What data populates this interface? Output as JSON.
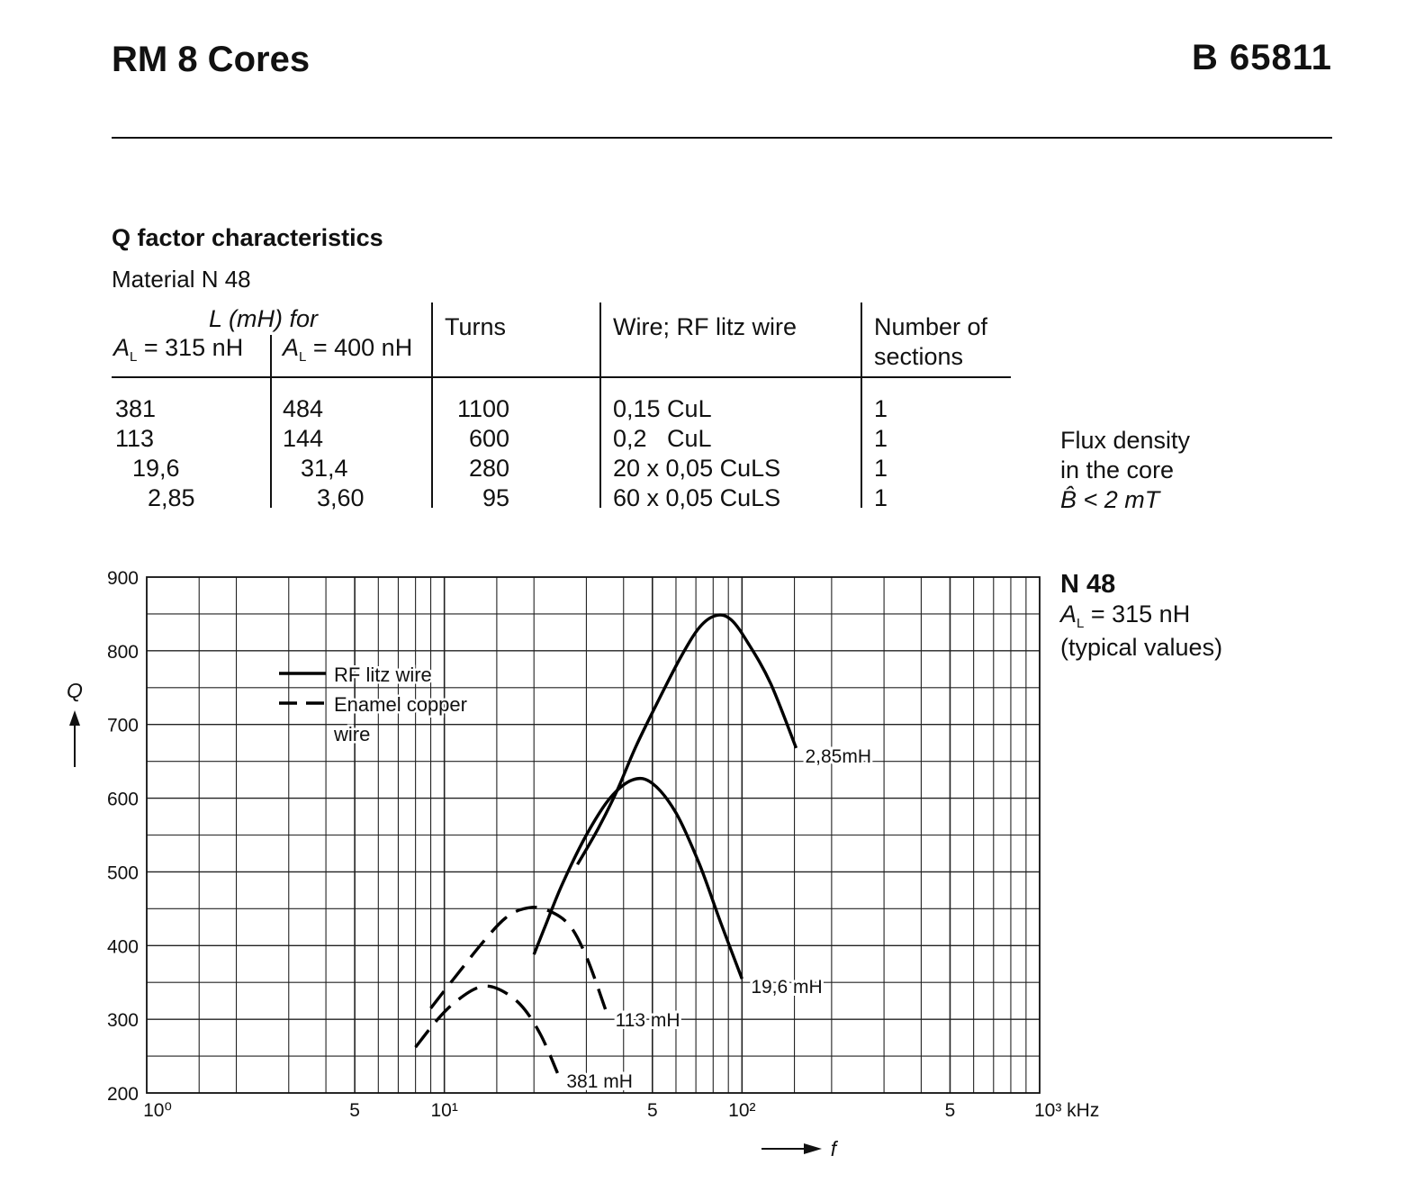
{
  "header": {
    "title": "RM 8 Cores",
    "code": "B 65811"
  },
  "section": {
    "title": "Q factor characteristics",
    "material": "Material N 48"
  },
  "table": {
    "header": {
      "l_group": "L (mH) for",
      "col1_pre": "A",
      "col1_sub": "L",
      "col1_post": " = 315 nH",
      "col2_pre": "A",
      "col2_sub": "L",
      "col2_post": " = 400 nH",
      "turns": "Turns",
      "wire": "Wire; RF litz wire",
      "sections_l1": "Number of",
      "sections_l2": "sections"
    },
    "rows": [
      {
        "l315": "381",
        "l400": "484",
        "turns": "1100",
        "wire": "0,15 CuL",
        "sections": "1"
      },
      {
        "l315": "113",
        "l400": "144",
        "turns": "600",
        "wire": "0,2   CuL",
        "sections": "1"
      },
      {
        "l315": "19,6",
        "l400": "31,4",
        "turns": "280",
        "wire": "20 x 0,05 CuLS",
        "sections": "1"
      },
      {
        "l315": "2,85",
        "l400": "3,60",
        "turns": "95",
        "wire": "60 x 0,05 CuLS",
        "sections": "1"
      }
    ]
  },
  "flux_note": {
    "l1": "Flux density",
    "l2": "in the core",
    "l3": "B̂ < 2 mT"
  },
  "chart_info": {
    "l1": "N 48",
    "l2_pre": "A",
    "l2_sub": "L",
    "l2_post": " = 315 nH",
    "l3": "(typical values)"
  },
  "chart_data": {
    "type": "line",
    "xscale": "log",
    "xlim": [
      1,
      1000
    ],
    "ylim": [
      200,
      900
    ],
    "x_ticks": [
      {
        "value": 1,
        "label": "10⁰"
      },
      {
        "value": 5,
        "label": "5"
      },
      {
        "value": 10,
        "label": "10¹"
      },
      {
        "value": 50,
        "label": "5"
      },
      {
        "value": 100,
        "label": "10²"
      },
      {
        "value": 500,
        "label": "5"
      },
      {
        "value": 1000,
        "label": "10³ kHz"
      }
    ],
    "y_ticks": [
      200,
      300,
      400,
      500,
      600,
      700,
      800,
      900
    ],
    "xlabel": "f",
    "ylabel": "Q",
    "grid": true,
    "legend": [
      {
        "label": "RF litz wire",
        "style": "solid"
      },
      {
        "label": "Enamel copper",
        "style": "dashed"
      },
      {
        "label": "wire",
        "style": "none"
      }
    ],
    "series": [
      {
        "name": "381 mH",
        "style": "dashed",
        "points": [
          [
            8,
            262
          ],
          [
            9.5,
            300
          ],
          [
            11,
            325
          ],
          [
            13,
            343
          ],
          [
            15,
            342
          ],
          [
            18,
            320
          ],
          [
            21,
            280
          ],
          [
            24,
            227
          ]
        ]
      },
      {
        "name": "113 mH",
        "style": "dashed",
        "points": [
          [
            9,
            315
          ],
          [
            11,
            360
          ],
          [
            13.5,
            405
          ],
          [
            16,
            437
          ],
          [
            18.5,
            450
          ],
          [
            21.5,
            450
          ],
          [
            26,
            430
          ],
          [
            30,
            385
          ],
          [
            35,
            310
          ]
        ]
      },
      {
        "name": "19,6 mH",
        "style": "solid",
        "points": [
          [
            20,
            388
          ],
          [
            22,
            430
          ],
          [
            25,
            485
          ],
          [
            30,
            550
          ],
          [
            36,
            600
          ],
          [
            43,
            625
          ],
          [
            50,
            620
          ],
          [
            60,
            580
          ],
          [
            72,
            510
          ],
          [
            85,
            430
          ],
          [
            100,
            355
          ]
        ]
      },
      {
        "name": "2,85mH",
        "style": "solid",
        "points": [
          [
            28,
            510
          ],
          [
            33,
            560
          ],
          [
            38,
            610
          ],
          [
            44,
            670
          ],
          [
            52,
            730
          ],
          [
            62,
            790
          ],
          [
            72,
            832
          ],
          [
            82,
            848
          ],
          [
            92,
            842
          ],
          [
            105,
            810
          ],
          [
            125,
            755
          ],
          [
            152,
            668
          ]
        ]
      }
    ]
  }
}
